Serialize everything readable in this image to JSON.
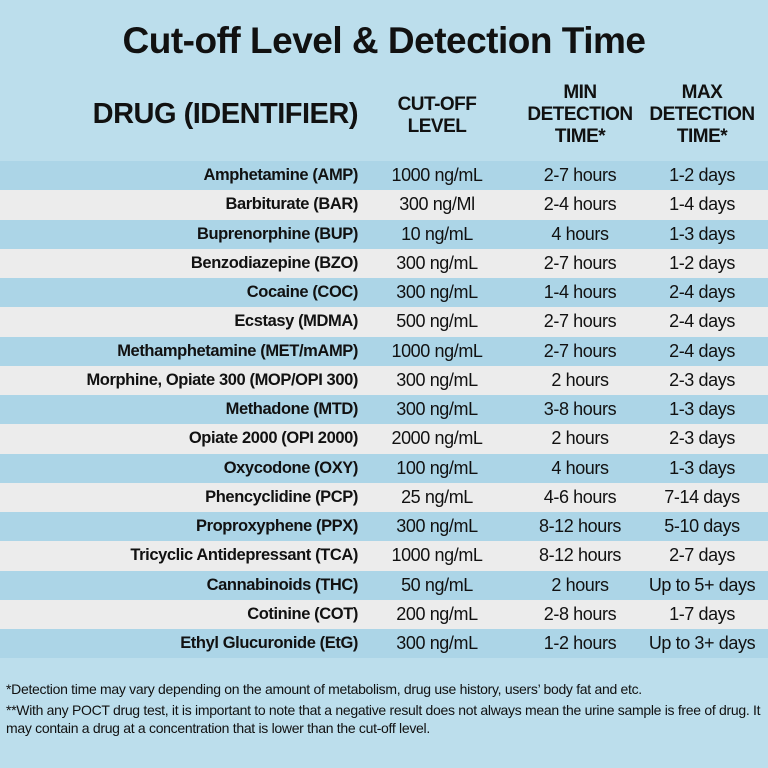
{
  "title": "Cut-off Level & Detection Time",
  "headers": {
    "drug": "DRUG (IDENTIFIER)",
    "cutoff_1": "CUT-OFF",
    "cutoff_2": "LEVEL",
    "min_1": "MIN",
    "min_2": "DETECTION",
    "min_3": "TIME*",
    "max_1": "MAX",
    "max_2": "DETECTION",
    "max_3": "TIME*"
  },
  "rows": [
    {
      "drug": "Amphetamine (AMP)",
      "cutoff": "1000 ng/mL",
      "min": "2-7 hours",
      "max": "1-2 days"
    },
    {
      "drug": "Barbiturate (BAR)",
      "cutoff": "300 ng/Ml",
      "min": "2-4 hours",
      "max": "1-4 days"
    },
    {
      "drug": "Buprenorphine (BUP)",
      "cutoff": "10 ng/mL",
      "min": "4 hours",
      "max": "1-3 days"
    },
    {
      "drug": "Benzodiazepine (BZO)",
      "cutoff": "300 ng/mL",
      "min": "2-7 hours",
      "max": "1-2 days"
    },
    {
      "drug": "Cocaine (COC)",
      "cutoff": "300 ng/mL",
      "min": "1-4 hours",
      "max": "2-4 days"
    },
    {
      "drug": "Ecstasy (MDMA)",
      "cutoff": "500 ng/mL",
      "min": "2-7 hours",
      "max": "2-4 days"
    },
    {
      "drug": "Methamphetamine (MET/mAMP)",
      "cutoff": "1000 ng/mL",
      "min": "2-7 hours",
      "max": "2-4 days"
    },
    {
      "drug": "Morphine, Opiate 300 (MOP/OPI 300)",
      "cutoff": "300 ng/mL",
      "min": "2 hours",
      "max": "2-3 days"
    },
    {
      "drug": "Methadone (MTD)",
      "cutoff": "300 ng/mL",
      "min": "3-8 hours",
      "max": "1-3 days"
    },
    {
      "drug": "Opiate 2000 (OPI 2000)",
      "cutoff": "2000 ng/mL",
      "min": "2 hours",
      "max": "2-3 days"
    },
    {
      "drug": "Oxycodone (OXY)",
      "cutoff": "100 ng/mL",
      "min": "4 hours",
      "max": "1-3 days"
    },
    {
      "drug": "Phencyclidine (PCP)",
      "cutoff": "25 ng/mL",
      "min": "4-6 hours",
      "max": "7-14 days"
    },
    {
      "drug": "Proproxyphene (PPX)",
      "cutoff": "300 ng/mL",
      "min": "8-12 hours",
      "max": "5-10 days"
    },
    {
      "drug": "Tricyclic Antidepressant (TCA)",
      "cutoff": "1000 ng/mL",
      "min": "8-12 hours",
      "max": "2-7 days"
    },
    {
      "drug": "Cannabinoids (THC)",
      "cutoff": "50 ng/mL",
      "min": "2 hours",
      "max": "Up to 5+ days"
    },
    {
      "drug": "Cotinine (COT)",
      "cutoff": "200 ng/mL",
      "min": "2-8 hours",
      "max": "1-7 days"
    },
    {
      "drug": "Ethyl Glucuronide (EtG)",
      "cutoff": "300 ng/mL",
      "min": "1-2 hours",
      "max": "Up to 3+ days"
    }
  ],
  "notes": [
    "*Detection time may vary depending on the amount of metabolism, drug use history, users’ body fat and etc.",
    "**With any POCT drug test, it is important to note that a negative result does not always mean the urine sample is free of drug. It may contain a drug at a concentration that is lower than the cut-off level."
  ],
  "colors": {
    "background": "#bcdeec",
    "row_blue": "#acd5e7",
    "row_grey": "#ececec"
  }
}
